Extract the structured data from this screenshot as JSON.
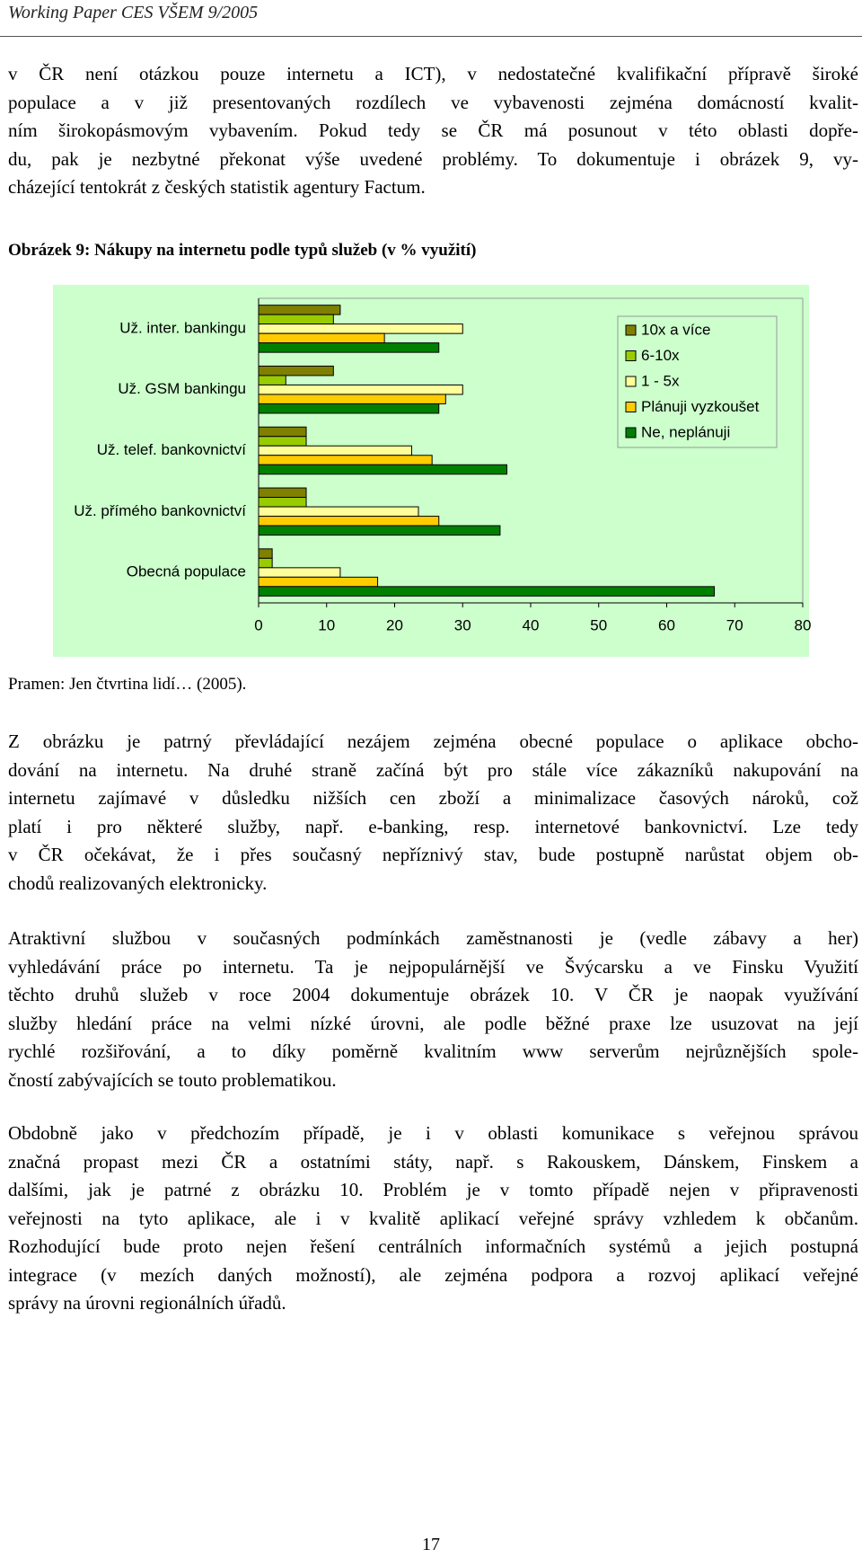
{
  "header": {
    "title": "Working Paper CES VŠEM 9/2005"
  },
  "intro": {
    "lines": [
      "v ČR není otázkou pouze internetu a ICT), v nedostatečné kvalifikační přípravě široké",
      "populace a v již presentovaných rozdílech ve vybavenosti zejména domácností kvalit-",
      "ním širokopásmovým vybavením. Pokud tedy se ČR má posunout v této oblasti dopře-",
      "du, pak je nezbytné překonat výše uvedené problémy. To dokumentuje i obrázek 9, vy-",
      "cházející tentokrát z českých statistik agentury Factum."
    ]
  },
  "figure": {
    "caption": "Obrázek 9: Nákupy na internetu podle typů služeb (v % využití)",
    "chart_data": {
      "type": "bar",
      "orientation": "horizontal",
      "categories": [
        "Už. inter. bankingu",
        "Už. GSM bankingu",
        "Už. telef. bankovnictví",
        "Už. přímého bankovnictví",
        "Obecná populace"
      ],
      "series": [
        {
          "name": "10x a více",
          "color": "#808000",
          "values": [
            12,
            11,
            7,
            7,
            2
          ]
        },
        {
          "name": "6-10x",
          "color": "#99cc00",
          "values": [
            11,
            4,
            7,
            7,
            2
          ]
        },
        {
          "name": "1 - 5x",
          "color": "#ffff99",
          "values": [
            30,
            30,
            22.5,
            23.5,
            12
          ]
        },
        {
          "name": "Plánuji vyzkoušet",
          "color": "#ffcc00",
          "values": [
            18.5,
            27.5,
            25.5,
            26.5,
            17.5
          ]
        },
        {
          "name": "Ne, neplánuji",
          "color": "#008000",
          "values": [
            26.5,
            26.5,
            36.5,
            35.5,
            67
          ]
        }
      ],
      "xlim": [
        0,
        80
      ],
      "xticks": [
        0,
        10,
        20,
        30,
        40,
        50,
        60,
        70,
        80
      ],
      "legend": "right",
      "background": "#ccffcc"
    },
    "source": "Pramen: Jen čtvrtina lidí… (2005)."
  },
  "body": [
    {
      "lines": [
        "Z obrázku je patrný převládající nezájem zejména obecné populace o aplikace obcho-",
        "dování na internetu. Na druhé straně začíná být pro stále více zákazníků nakupování na",
        "internetu zajímavé v důsledku nižších cen zboží a minimalizace časových nároků, což",
        "platí i pro některé služby, např. e-banking, resp. internetové bankovnictví. Lze tedy",
        "v ČR očekávat, že i přes současný nepříznivý stav, bude postupně narůstat objem ob-",
        "chodů realizovaných elektronicky."
      ]
    },
    {
      "lines": [
        "Atraktivní službou v současných podmínkách zaměstnanosti je (vedle zábavy a her)",
        "vyhledávání práce po internetu. Ta je nejpopulárnější ve Švýcarsku a ve Finsku  Využití",
        "těchto druhů služeb v roce 2004 dokumentuje obrázek 10. V ČR je naopak využívání",
        "služby hledání práce na velmi nízké úrovni, ale podle běžné praxe lze usuzovat na její",
        "rychlé rozšiřování, a to díky poměrně kvalitním www serverům nejrůznějších spole-",
        "čností zabývajících se touto problematikou."
      ]
    },
    {
      "lines": [
        "Obdobně jako v předchozím případě, je i v oblasti komunikace s veřejnou správou",
        "značná propast mezi ČR a ostatními státy, např. s Rakouskem, Dánskem, Finskem a",
        "dalšími, jak je patrné z obrázku 10. Problém je v tomto případě nejen v připravenosti",
        "veřejnosti na tyto aplikace, ale i v kvalitě aplikací veřejné správy vzhledem k občanům.",
        "Rozhodující bude proto nejen řešení centrálních informačních systémů a jejich postupná",
        "integrace (v mezích daných možností), ale zejména podpora a rozvoj aplikací veřejné",
        "správy na úrovni regionálních úřadů."
      ]
    }
  ],
  "footer": {
    "page": "17"
  }
}
